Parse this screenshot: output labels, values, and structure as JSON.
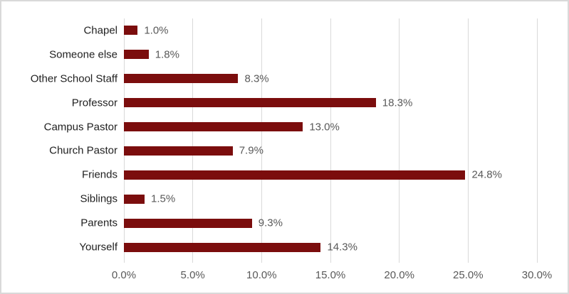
{
  "chart_data": {
    "type": "bar",
    "orientation": "horizontal",
    "title": "",
    "xlabel": "",
    "ylabel": "",
    "categories": [
      "Chapel",
      "Someone else",
      "Other School Staff",
      "Professor",
      "Campus Pastor",
      "Church Pastor",
      "Friends",
      "Siblings",
      "Parents",
      "Yourself"
    ],
    "values": [
      1.0,
      1.8,
      8.3,
      18.3,
      13.0,
      7.9,
      24.8,
      1.5,
      9.3,
      14.3
    ],
    "data_labels": [
      "1.0%",
      "1.8%",
      "8.3%",
      "18.3%",
      "13.0%",
      "7.9%",
      "24.8%",
      "1.5%",
      "9.3%",
      "14.3%"
    ],
    "xlim": [
      0,
      30
    ],
    "x_ticks": [
      {
        "value": 0,
        "label": "0.0%"
      },
      {
        "value": 5,
        "label": "5.0%"
      },
      {
        "value": 10,
        "label": "10.0%"
      },
      {
        "value": 15,
        "label": "15.0%"
      },
      {
        "value": 20,
        "label": "20.0%"
      },
      {
        "value": 25,
        "label": "25.0%"
      },
      {
        "value": 30,
        "label": "30.0%"
      }
    ],
    "grid": true,
    "legend": "none"
  },
  "colors": {
    "bar": "#7B0D0D",
    "gridline": "#D9D9D9",
    "chart_border": "#D9D9D9",
    "tick_label": "#595959",
    "data_label": "#595959",
    "category_label": "#1F1F1F",
    "background": "#FFFFFF"
  }
}
